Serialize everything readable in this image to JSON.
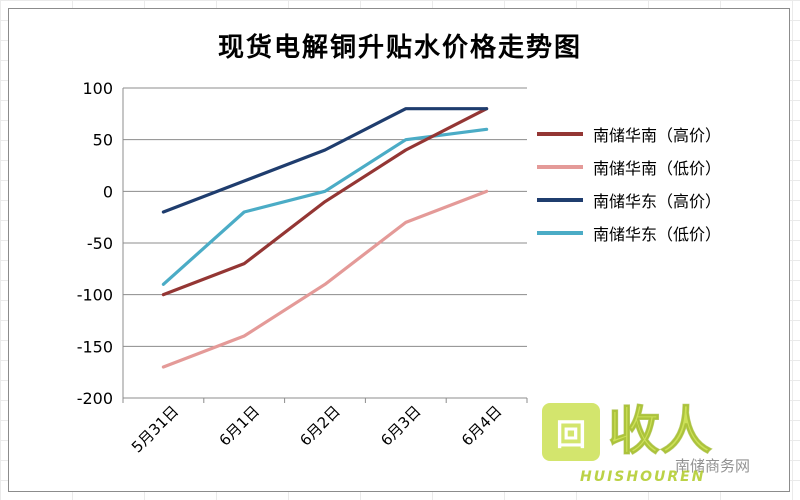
{
  "chart_data": {
    "type": "line",
    "title": "现货电解铜升贴水价格走势图",
    "categories": [
      "5月31日",
      "6月1日",
      "6月2日",
      "6月3日",
      "6月4日"
    ],
    "ylim": [
      -200,
      100
    ],
    "yticks": [
      100,
      50,
      0,
      -50,
      -100,
      -150,
      -200
    ],
    "grid": true,
    "legend_position": "right",
    "series": [
      {
        "name": "南储华南（高价）",
        "color": "#943634",
        "values": [
          -100,
          -70,
          -10,
          40,
          80
        ]
      },
      {
        "name": "南储华南（低价）",
        "color": "#e49a98",
        "values": [
          -170,
          -140,
          -90,
          -30,
          0
        ]
      },
      {
        "name": "南储华东（高价）",
        "color": "#1f3d6e",
        "values": [
          -20,
          10,
          40,
          80,
          80
        ]
      },
      {
        "name": "南储华东（低价）",
        "color": "#4bacc6",
        "values": [
          -90,
          -20,
          0,
          50,
          60
        ]
      }
    ]
  },
  "watermark": {
    "box_text": "回",
    "logo_text": "收人",
    "site": "南储商务网",
    "brand": "HUISHOUREN"
  }
}
